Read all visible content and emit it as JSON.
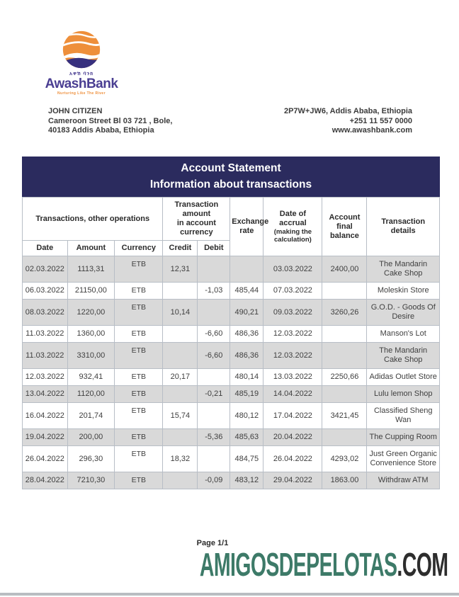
{
  "logo": {
    "amharic_text": "አዋሽ ባንክ",
    "bank_name": "AwashBank",
    "tagline": "Nurturing Like The River",
    "colors": {
      "orange": "#ee8f3b",
      "purple": "#4a3e92",
      "navy_wave": "#37307e"
    }
  },
  "customer": {
    "name": "JOHN CITIZEN",
    "address_line1": "Cameroon Street Bl 03 721 , Bole,",
    "address_line2": "40183 Addis Ababa, Ethiopia"
  },
  "bank_contact": {
    "address": "2P7W+JW6, Addis Ababa, Ethiopia",
    "phone": "+251 11 557 0000",
    "website": "www.awashbank.com"
  },
  "banner": {
    "title": "Account Statement",
    "subtitle": "Information about transactions",
    "bg_color": "#2b2b5e"
  },
  "table": {
    "group_headers": {
      "operations": "Transactions, other operations",
      "amount_in_currency": "Transaction\namount\nin account\ncurrency",
      "exchange_rate": "Exchange\nrate",
      "accrual_main": "Date of\naccrual",
      "accrual_sub": "(making the\ncalculation)",
      "final_balance": "Account\nfinal\nbalance",
      "details": "Transaction\ndetails"
    },
    "sub_headers": {
      "date": "Date",
      "amount": "Amount",
      "currency": "Currency",
      "credit": "Credit",
      "debit": "Debit"
    },
    "rows": [
      {
        "date": "02.03.2022",
        "amount": "1113,31",
        "currency": "ETB",
        "credit": "12,31",
        "debit": "",
        "exchange_rate": "",
        "accrual_date": "03.03.2022",
        "balance": "2400,00",
        "details": "The Mandarin Cake Shop"
      },
      {
        "date": "06.03.2022",
        "amount": "21150,00",
        "currency": "ETB",
        "credit": "",
        "debit": "-1,03",
        "exchange_rate": "485,44",
        "accrual_date": "07.03.2022",
        "balance": "",
        "details": "Moleskin Store"
      },
      {
        "date": "08.03.2022",
        "amount": "1220,00",
        "currency": "ETB",
        "credit": "10,14",
        "debit": "",
        "exchange_rate": "490,21",
        "accrual_date": "09.03.2022",
        "balance": "3260,26",
        "details": "G.O.D. - Goods Of Desire"
      },
      {
        "date": "11.03.2022",
        "amount": "1360,00",
        "currency": "ETB",
        "credit": "",
        "debit": "-6,60",
        "exchange_rate": "486,36",
        "accrual_date": "12.03.2022",
        "balance": "",
        "details": "Manson's Lot"
      },
      {
        "date": "11.03.2022",
        "amount": "3310,00",
        "currency": "ETB",
        "credit": "",
        "debit": "-6,60",
        "exchange_rate": "486,36",
        "accrual_date": "12.03.2022",
        "balance": "",
        "details": "The Mandarin Cake Shop"
      },
      {
        "date": "12.03.2022",
        "amount": "932,41",
        "currency": "ETB",
        "credit": "20,17",
        "debit": "",
        "exchange_rate": "480,14",
        "accrual_date": "13.03.2022",
        "balance": "2250,66",
        "details": "Adidas Outlet Store"
      },
      {
        "date": "13.04.2022",
        "amount": "1120,00",
        "currency": "ETB",
        "credit": "",
        "debit": "-0,21",
        "exchange_rate": "485,19",
        "accrual_date": "14.04.2022",
        "balance": "",
        "details": "Lulu lemon Shop"
      },
      {
        "date": "16.04.2022",
        "amount": "201,74",
        "currency": "ETB",
        "credit": "15,74",
        "debit": "",
        "exchange_rate": "480,12",
        "accrual_date": "17.04.2022",
        "balance": "3421,45",
        "details": "Classified Sheng Wan"
      },
      {
        "date": "19.04.2022",
        "amount": "200,00",
        "currency": "ETB",
        "credit": "",
        "debit": "-5,36",
        "exchange_rate": "485,63",
        "accrual_date": "20.04.2022",
        "balance": "",
        "details": "The Cupping Room"
      },
      {
        "date": "26.04.2022",
        "amount": "296,30",
        "currency": "ETB",
        "credit": "18,32",
        "debit": "",
        "exchange_rate": "484,75",
        "accrual_date": "26.04.2022",
        "balance": "4293,02",
        "details": "Just Green Organic Convenience Store"
      },
      {
        "date": "28.04.2022",
        "amount": "7210,30",
        "currency": "ETB",
        "credit": "",
        "debit": "-0,09",
        "exchange_rate": "483,12",
        "accrual_date": "29.04.2022",
        "balance": "1863.00",
        "details": "Withdraw ATM"
      }
    ],
    "shaded_row_color": "#d9d9d9"
  },
  "footer": {
    "page_label": "Page 1/1",
    "watermark_main": "AMIGOSDEPELOTAS",
    "watermark_suffix": ".COM",
    "watermark_color": "#3d7a68"
  }
}
